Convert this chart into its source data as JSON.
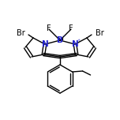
{
  "bg_color": "#ffffff",
  "line_color": "#000000",
  "N_color": "#2222cc",
  "B_color": "#2222cc",
  "Br_color": "#000000",
  "F_color": "#000000",
  "figsize": [
    1.52,
    1.52
  ],
  "dpi": 100,
  "xlim": [
    0,
    152
  ],
  "ylim": [
    0,
    152
  ],
  "lw": 1.0,
  "Bx": 76,
  "By": 101,
  "NLx": 57,
  "NLy": 96,
  "NRx": 95,
  "NRy": 96,
  "CL1x": 42,
  "CL1y": 104,
  "CL2x": 32,
  "CL2y": 92,
  "CL3x": 40,
  "CL3y": 80,
  "CL4x": 55,
  "CL4y": 83,
  "CR1x": 110,
  "CR1y": 104,
  "CR2x": 120,
  "CR2y": 92,
  "CR3x": 112,
  "CR3y": 80,
  "CR4x": 97,
  "CR4y": 83,
  "Cmx": 76,
  "Cmy": 80,
  "FLx": 62,
  "FLy": 115,
  "FRx": 90,
  "FRy": 115,
  "BrLx": 24,
  "BrLy": 110,
  "BrRx": 128,
  "BrRy": 110,
  "Phcx": 76,
  "Phcy": 52,
  "Ph_r": 18,
  "charge_minus": "⁻",
  "charge_plus": "⁺"
}
